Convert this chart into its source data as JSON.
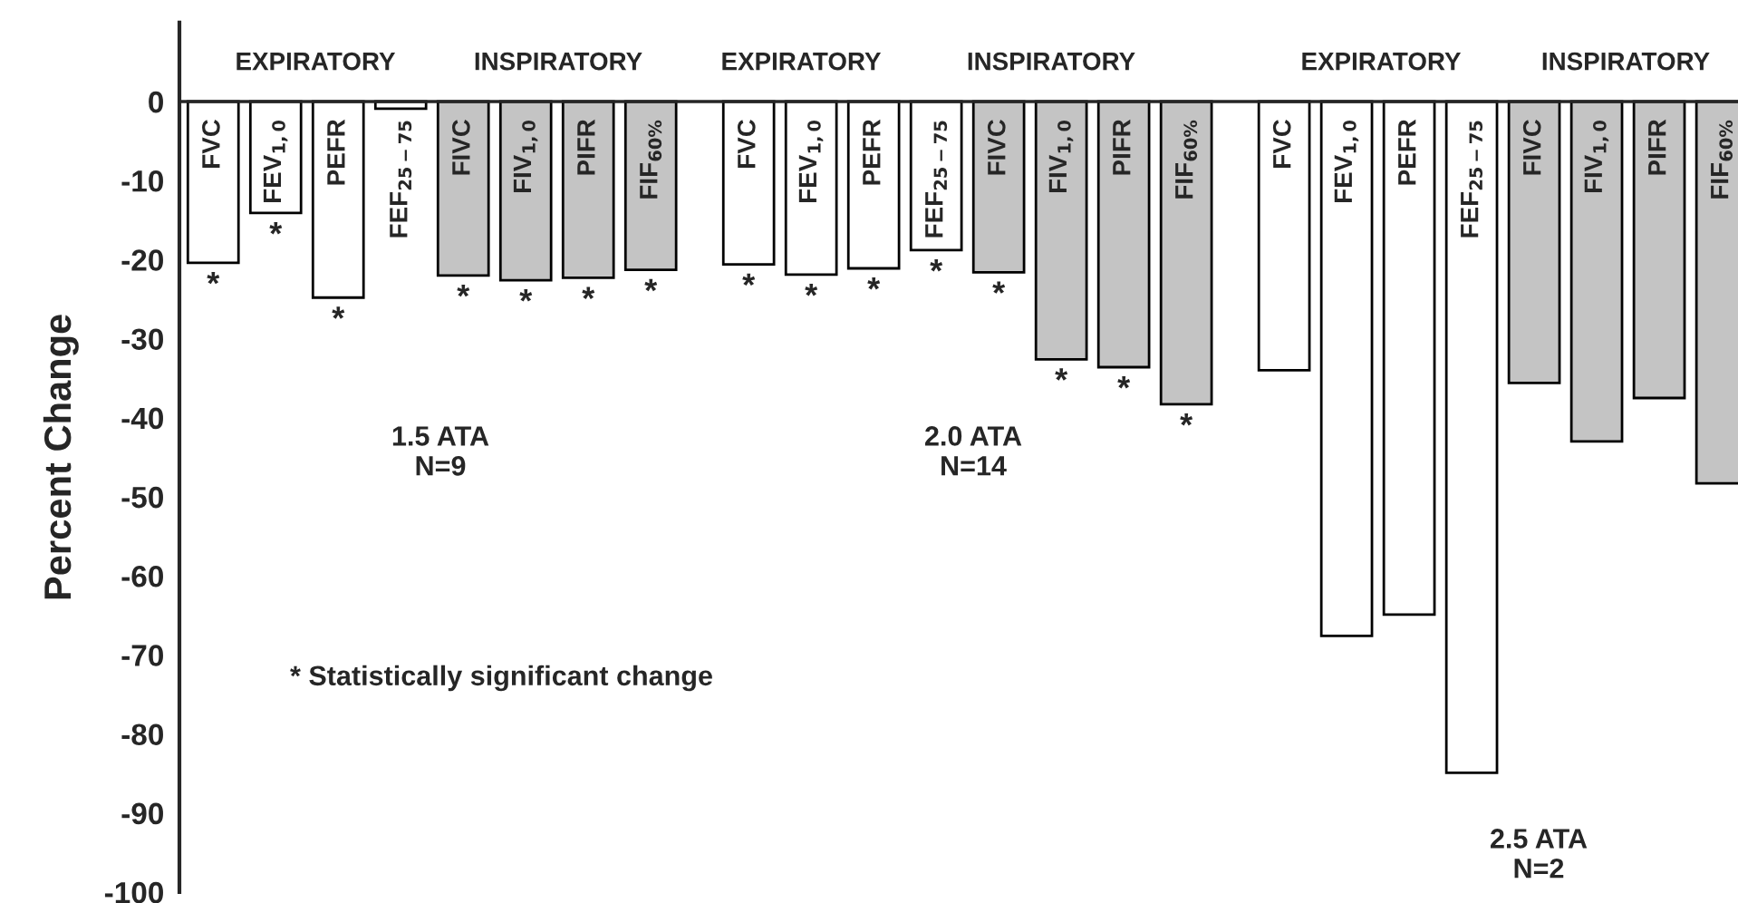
{
  "chart_data": {
    "type": "bar",
    "ylabel": "Percent Change",
    "categories": [
      "FVC",
      "FEV$_{1,0}$",
      "PEFR",
      "FEF$_{25−75}$",
      "FIVC",
      "FIV$_{1,0}$",
      "PIFR",
      "FIF$_{60%}$",
      null,
      "FVC",
      "FEV$_{1,0}$",
      "PEFR",
      "FEF$_{25−75}$",
      "FIVC",
      "FIV$_{1,0}$",
      "PIFR",
      "FIF$_{60%}$",
      null,
      "FVC",
      "FEV$_{1,0}$",
      "PEFR",
      "FEF$_{25−75}$",
      "FIVC",
      "FIV$_{1,0}$",
      "PIFR",
      "FIF$_{60%}$"
    ],
    "values": [
      -20.4,
      -14.1,
      -24.8,
      -0.9,
      -22.0,
      -22.6,
      -22.3,
      -21.3,
      null,
      -20.6,
      -21.9,
      -21.1,
      -18.8,
      -21.6,
      -32.6,
      -33.6,
      -38.3,
      null,
      -34.0,
      -67.6,
      -64.9,
      -84.9,
      -35.6,
      -43.0,
      -37.5,
      -48.3
    ],
    "colors": [
      "#ffffff",
      "#ffffff",
      "#ffffff",
      "#ffffff",
      "#c4c4c4",
      "#c4c4c4",
      "#c4c4c4",
      "#c4c4c4",
      null,
      "#ffffff",
      "#ffffff",
      "#ffffff",
      "#ffffff",
      "#c4c4c4",
      "#c4c4c4",
      "#c4c4c4",
      "#c4c4c4",
      null,
      "#ffffff",
      "#ffffff",
      "#ffffff",
      "#ffffff",
      "#c4c4c4",
      "#c4c4c4",
      "#c4c4c4",
      "#c4c4c4"
    ],
    "value_labels": [
      "*",
      "*",
      "*",
      null,
      "*",
      "*",
      "*",
      "*",
      null,
      "*",
      "*",
      "*",
      "*",
      "*",
      "*",
      "*",
      "*",
      null,
      null,
      null,
      null,
      null,
      null,
      null,
      null,
      null
    ],
    "ylim": [
      -100,
      10
    ],
    "yticks": [
      0,
      -10,
      -20,
      -30,
      -40,
      -50,
      -60,
      -70,
      -80,
      -90,
      -100
    ],
    "annotations": [
      "EXPIRATORY",
      "INSPIRATORY",
      "EXPIRATORY",
      "INSPIRATORY",
      "EXPIRATORY",
      "INSPIRATORY",
      "1.5 ATA\nN=9",
      "2.0 ATA\nN=14",
      "2.5 ATA\nN=2",
      "* Statistically significant change"
    ]
  }
}
